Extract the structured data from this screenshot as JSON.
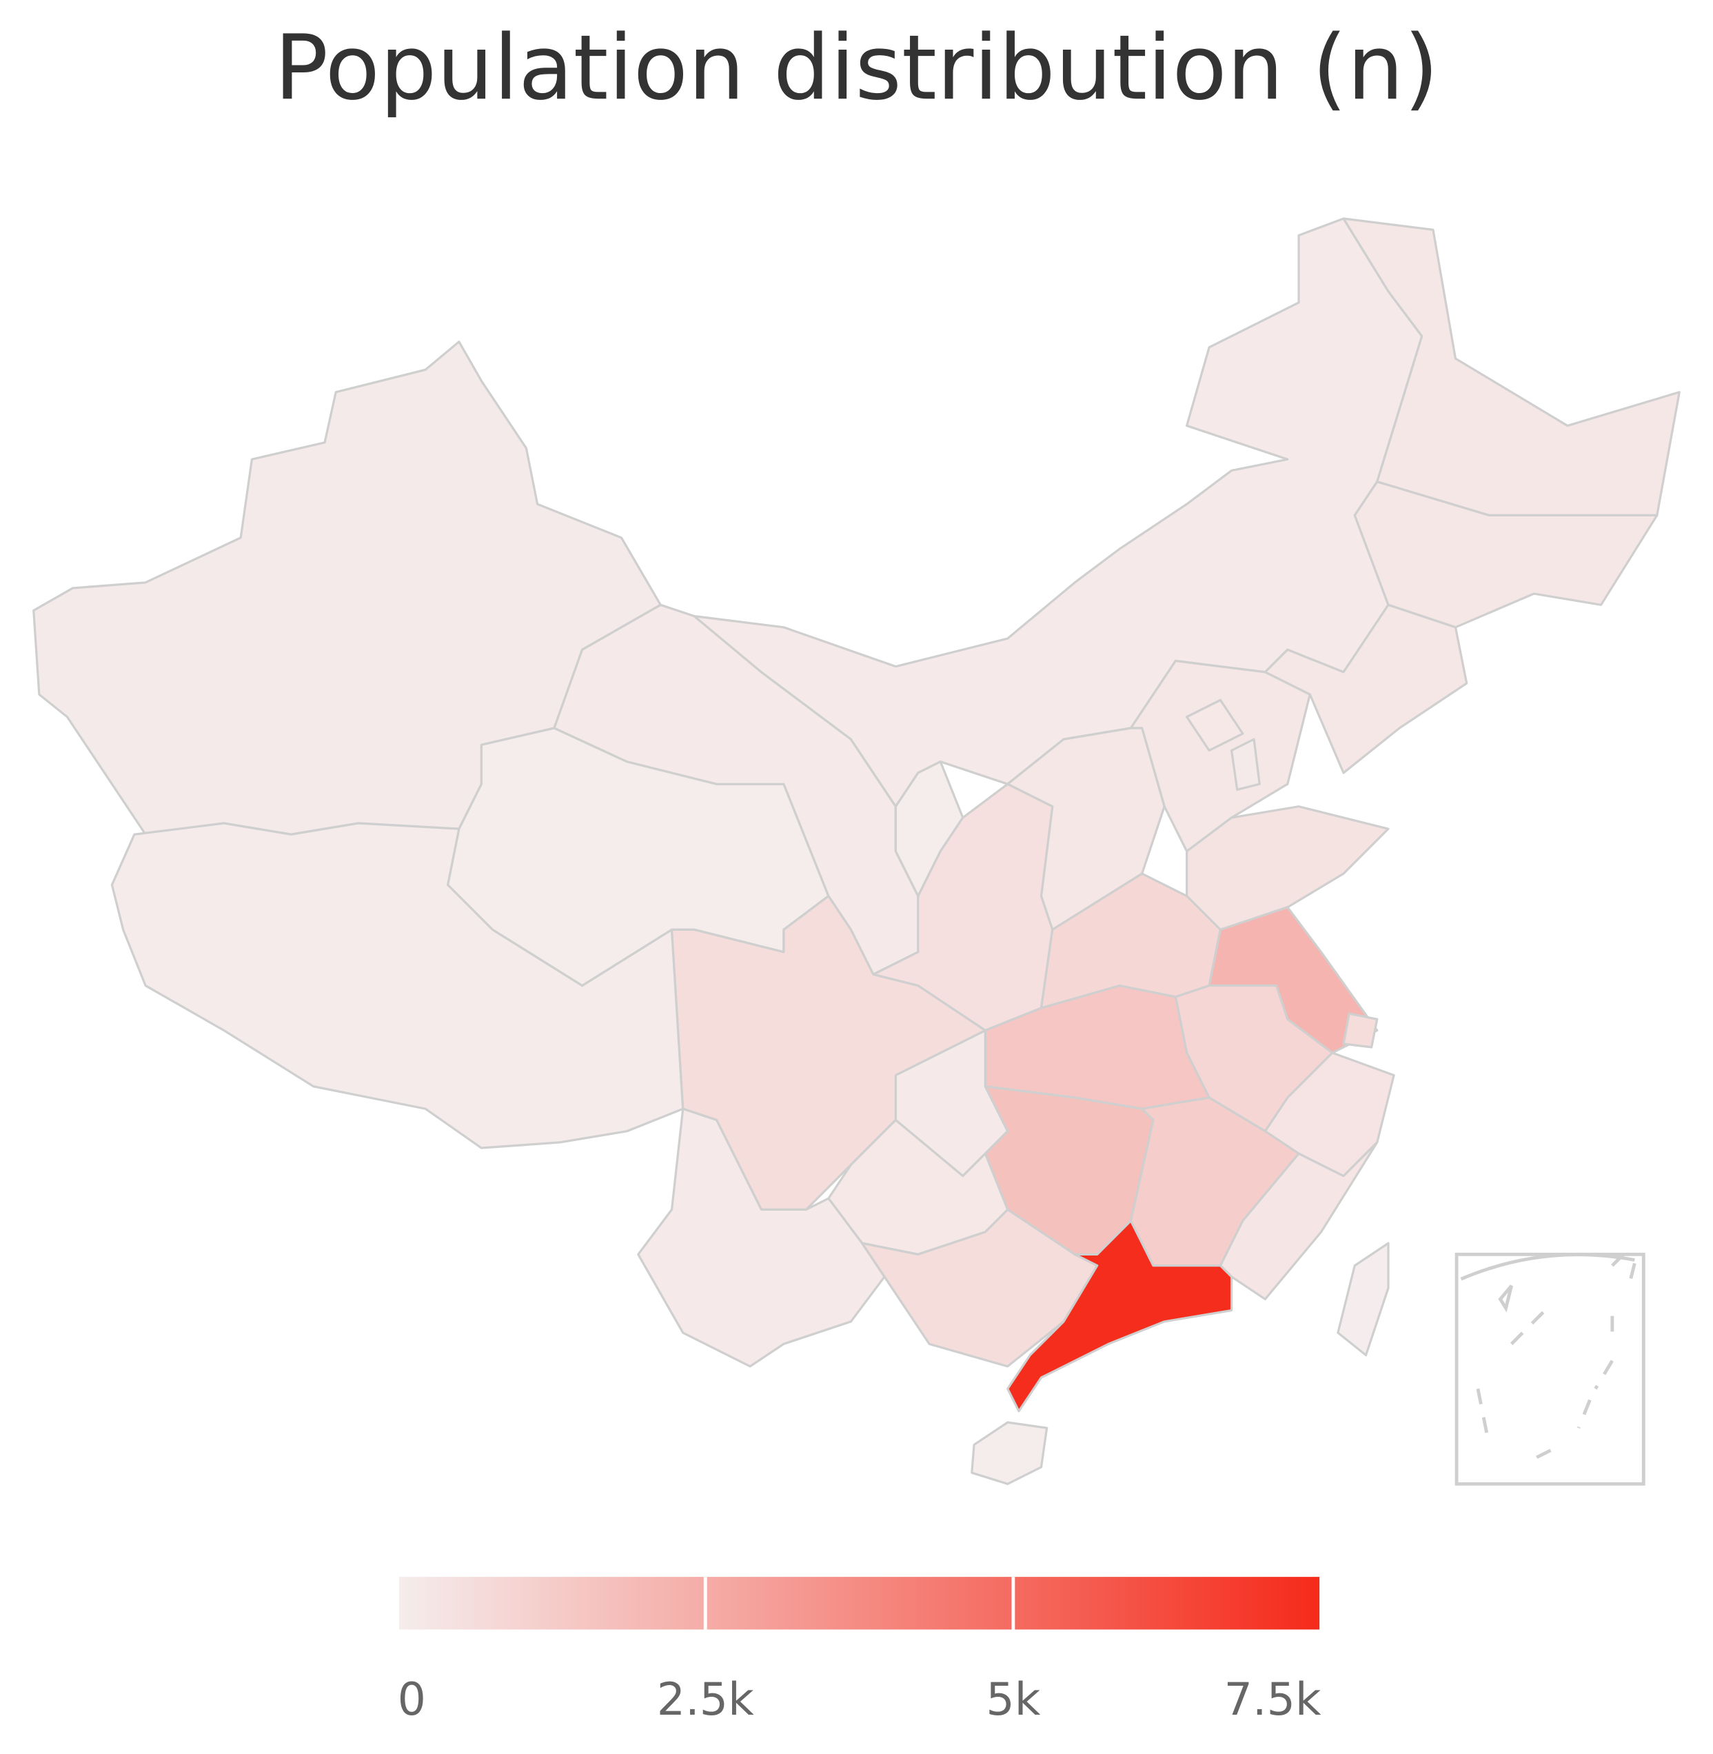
{
  "chart_data": {
    "type": "choropleth",
    "title": "Population distribution (n)",
    "values": [
      100,
      80,
      50,
      150,
      150,
      250,
      250,
      250,
      250,
      200,
      100,
      250,
      50,
      500,
      400,
      800,
      2200,
      600,
      900,
      1500,
      350,
      150,
      600,
      1700,
      1200,
      300,
      200,
      150,
      600,
      7400,
      20,
      0
    ],
    "colorscale": [
      "#f5eded",
      "#f52a1a"
    ],
    "clim": [
      0,
      7500
    ],
    "cticks": [
      0,
      {
        "value": 2500,
        "label": "2.5k"
      },
      {
        "value": 5000,
        "label": "5k"
      },
      {
        "value": 7500,
        "label": "7.5k"
      }
    ]
  }
}
